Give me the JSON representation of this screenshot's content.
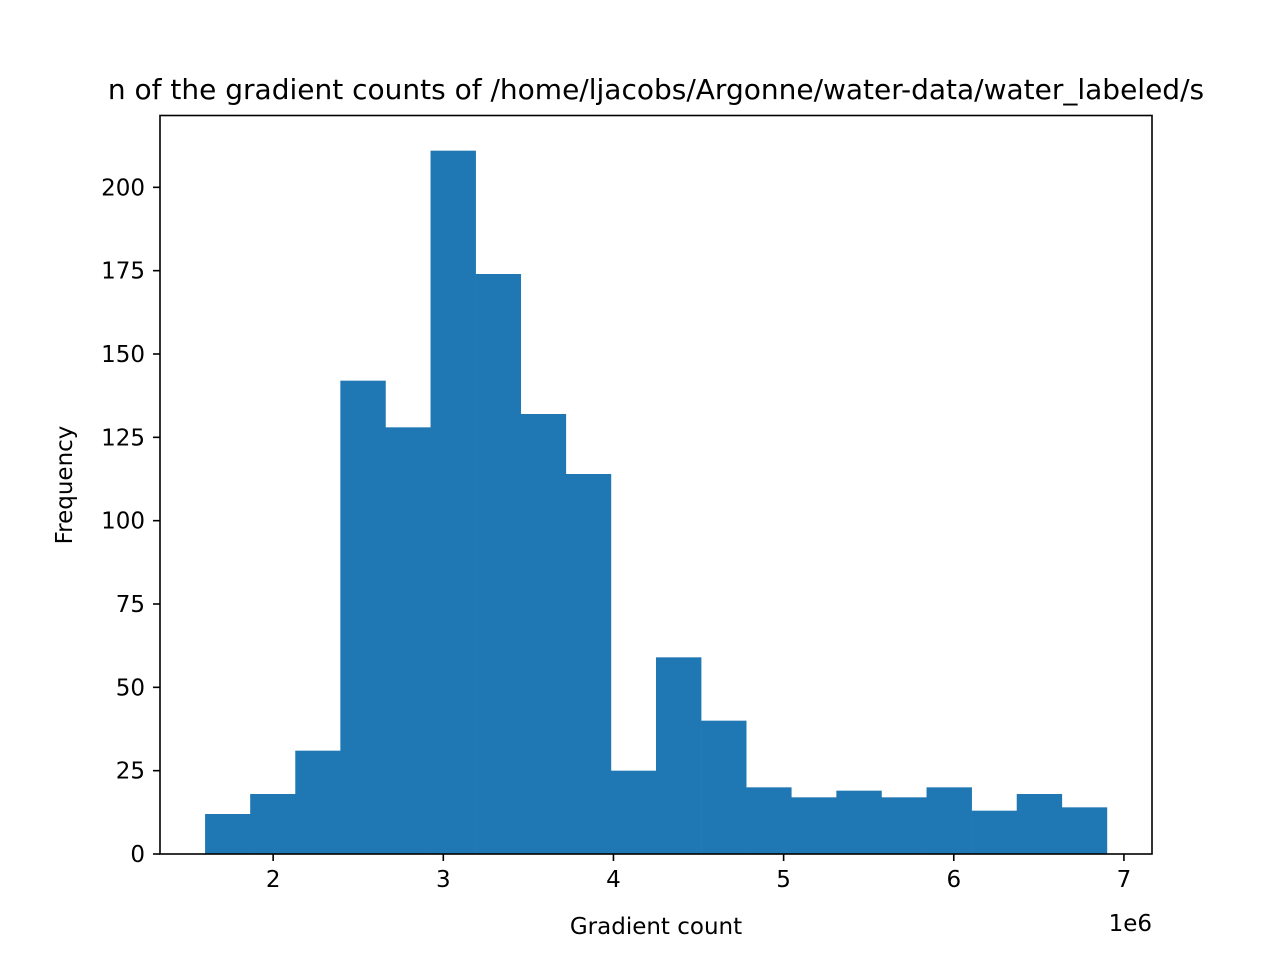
{
  "chart_data": {
    "type": "bar",
    "subtype": "histogram",
    "title": "n of the gradient counts of /home/ljacobs/Argonne/water-data/water_labeled/s",
    "xlabel": "Gradient count",
    "ylabel": "Frequency",
    "x_offset_text": "1e6",
    "x_scale_factor": 1000000,
    "xlim": [
      1.335,
      7.165
    ],
    "ylim": [
      0,
      221.55
    ],
    "x_ticks": [
      2,
      3,
      4,
      5,
      6,
      7
    ],
    "x_tick_labels": [
      "2",
      "3",
      "4",
      "5",
      "6",
      "7"
    ],
    "y_ticks": [
      0,
      25,
      50,
      75,
      100,
      125,
      150,
      175,
      200
    ],
    "y_tick_labels": [
      "0",
      "25",
      "50",
      "75",
      "100",
      "125",
      "150",
      "175",
      "200"
    ],
    "bin_edges": [
      1.6,
      1.865,
      2.13,
      2.395,
      2.66,
      2.925,
      3.19,
      3.455,
      3.72,
      3.985,
      4.25,
      4.515,
      4.78,
      5.045,
      5.31,
      5.575,
      5.84,
      6.105,
      6.37,
      6.635,
      6.9
    ],
    "values": [
      12,
      18,
      31,
      142,
      128,
      211,
      174,
      132,
      114,
      25,
      59,
      40,
      20,
      17,
      19,
      17,
      20,
      13,
      18,
      14
    ],
    "bar_color": "#1f77b4",
    "grid": false,
    "legend": "none"
  }
}
